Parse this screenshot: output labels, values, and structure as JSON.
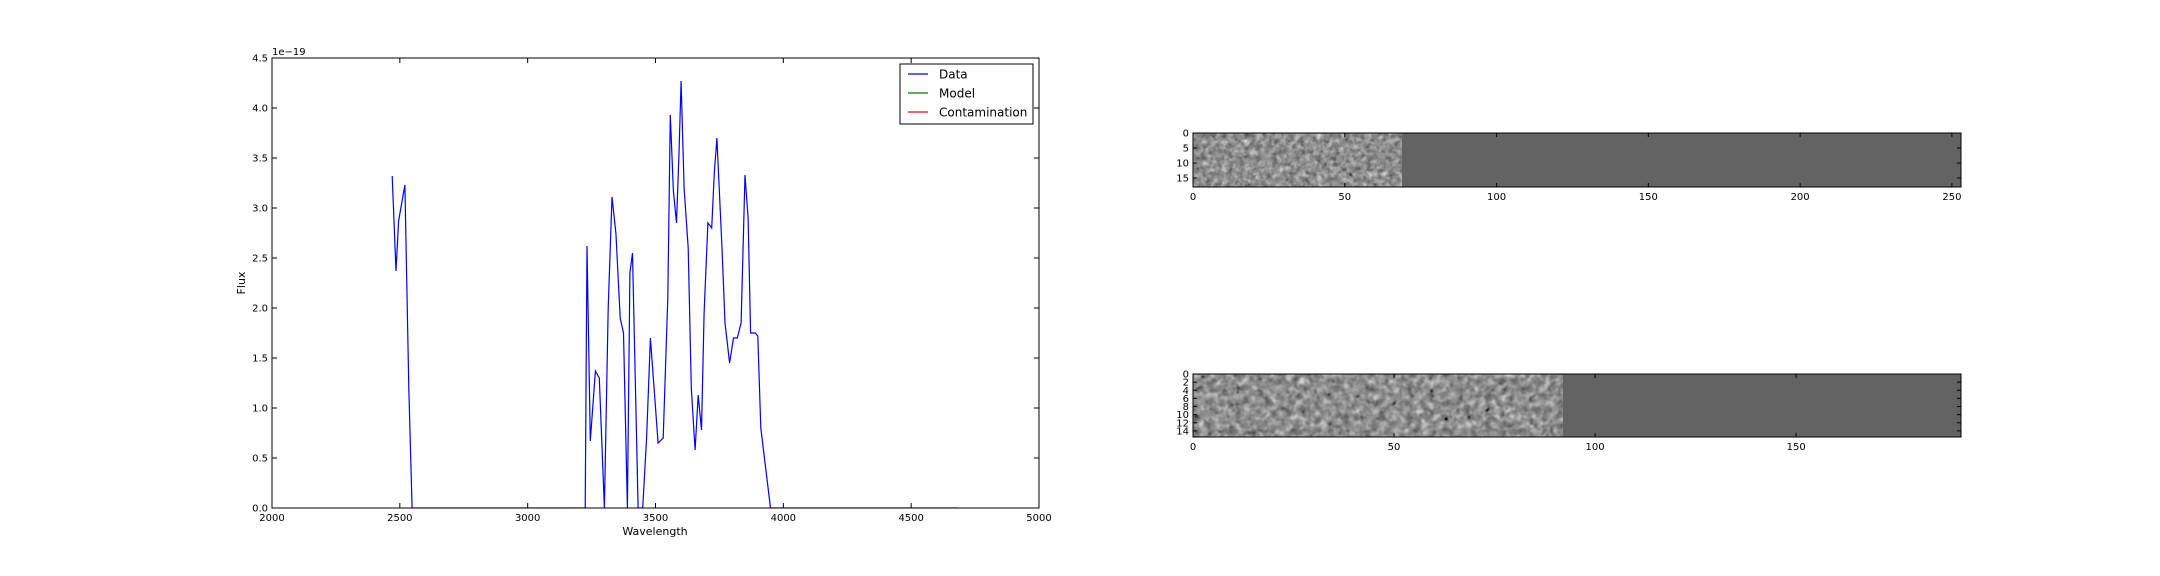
{
  "chart_data": [
    {
      "type": "line",
      "xlabel": "Wavelength",
      "ylabel": "Flux",
      "y_scale_label": "1e−19",
      "xlim": [
        2000,
        5000
      ],
      "ylim": [
        0,
        4.5
      ],
      "xticks": [
        2000,
        2500,
        3000,
        3500,
        4000,
        4500,
        5000
      ],
      "yticks": [
        0.0,
        0.5,
        1.0,
        1.5,
        2.0,
        2.5,
        3.0,
        3.5,
        4.0,
        4.5
      ],
      "xtick_labels": [
        "2000",
        "2500",
        "3000",
        "3500",
        "4000",
        "4500",
        "5000"
      ],
      "ytick_labels": [
        "0.0",
        "0.5",
        "1.0",
        "1.5",
        "2.0",
        "2.5",
        "3.0",
        "3.5",
        "4.0",
        "4.5"
      ],
      "grid": false,
      "legend_position": "top-right",
      "legend": [
        {
          "label": "Data",
          "color": "#0000ff"
        },
        {
          "label": "Model",
          "color": "#008000"
        },
        {
          "label": "Contamination",
          "color": "#ff0000"
        }
      ],
      "series": [
        {
          "name": "Data",
          "color": "#0000ff",
          "x": [
            2470,
            2485,
            2495,
            2520,
            2535,
            2548,
            2560,
            2600,
            2800,
            3000,
            3200,
            3225,
            3232,
            3245,
            3265,
            3280,
            3300,
            3315,
            3330,
            3345,
            3362,
            3375,
            3390,
            3400,
            3410,
            3432,
            3450,
            3465,
            3480,
            3510,
            3530,
            3548,
            3558,
            3570,
            3582,
            3592,
            3600,
            3612,
            3628,
            3640,
            3655,
            3667,
            3680,
            3690,
            3705,
            3720,
            3730,
            3740,
            3760,
            3772,
            3790,
            3805,
            3820,
            3835,
            3850,
            3862,
            3872,
            3890,
            3900,
            3912,
            3950,
            4200,
            4500,
            4680
          ],
          "y": [
            3.32,
            2.37,
            2.87,
            3.23,
            1.2,
            0.0,
            0.0,
            0.0,
            0.0,
            0.0,
            0.0,
            0.0,
            2.62,
            0.67,
            1.37,
            1.3,
            0.0,
            2.0,
            3.11,
            2.75,
            1.9,
            1.75,
            0.0,
            2.35,
            2.55,
            0.0,
            0.0,
            0.7,
            1.7,
            0.65,
            0.7,
            2.1,
            3.93,
            3.17,
            2.85,
            3.55,
            4.27,
            3.2,
            2.6,
            1.2,
            0.58,
            1.13,
            0.78,
            1.95,
            2.85,
            2.8,
            3.35,
            3.7,
            2.6,
            1.85,
            1.45,
            1.7,
            1.7,
            1.85,
            3.33,
            2.9,
            1.75,
            1.75,
            1.72,
            0.8,
            0.0,
            0.0,
            0.0,
            0.0
          ]
        },
        {
          "name": "Model",
          "color": "#008000",
          "x": [],
          "y": []
        },
        {
          "name": "Contamination",
          "color": "#ff0000",
          "x": [],
          "y": []
        }
      ]
    },
    {
      "type": "heatmap",
      "xlim": [
        0,
        253
      ],
      "ylim": [
        18,
        0
      ],
      "xticks": [
        0,
        50,
        100,
        150,
        200,
        250
      ],
      "yticks": [
        0,
        5,
        10,
        15
      ],
      "xtick_labels": [
        "0",
        "50",
        "100",
        "150",
        "200",
        "250"
      ],
      "ytick_labels": [
        "0",
        "5",
        "10",
        "15"
      ],
      "colormap": "gray",
      "data_region_end_x": 66,
      "fill_color": "#636363"
    },
    {
      "type": "heatmap",
      "xlim": [
        0,
        191
      ],
      "ylim": [
        15.5,
        0
      ],
      "xticks": [
        0,
        50,
        100,
        150
      ],
      "yticks": [
        0,
        2,
        4,
        6,
        8,
        10,
        12,
        14
      ],
      "xtick_labels": [
        "0",
        "50",
        "100",
        "150"
      ],
      "ytick_labels": [
        "0",
        "2",
        "4",
        "6",
        "8",
        "10",
        "12",
        "14"
      ],
      "colormap": "gray",
      "data_region_end_x": 92,
      "fill_color": "#636363"
    }
  ]
}
